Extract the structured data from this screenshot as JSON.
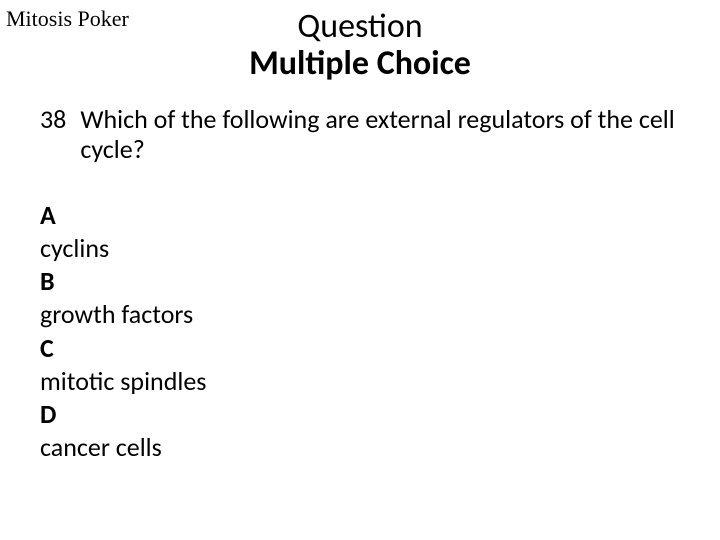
{
  "topLeftLabel": "Mitosis Poker",
  "header": {
    "line1": "Question",
    "line2": "Multiple Choice"
  },
  "question": {
    "number": "38",
    "text": "Which of the following are external regulators of the cell cycle?"
  },
  "options": [
    {
      "letter": "A",
      "text": "cyclins"
    },
    {
      "letter": "B",
      "text": "growth factors"
    },
    {
      "letter": "C",
      "text": "mitotic spindles"
    },
    {
      "letter": "D",
      "text": "cancer cells"
    }
  ],
  "style": {
    "background_color": "#ffffff",
    "text_color": "#000000",
    "top_left_font": "Times New Roman",
    "body_font": "Calibri",
    "header_fontsize": 34,
    "body_fontsize": 26,
    "top_left_fontsize": 22
  }
}
